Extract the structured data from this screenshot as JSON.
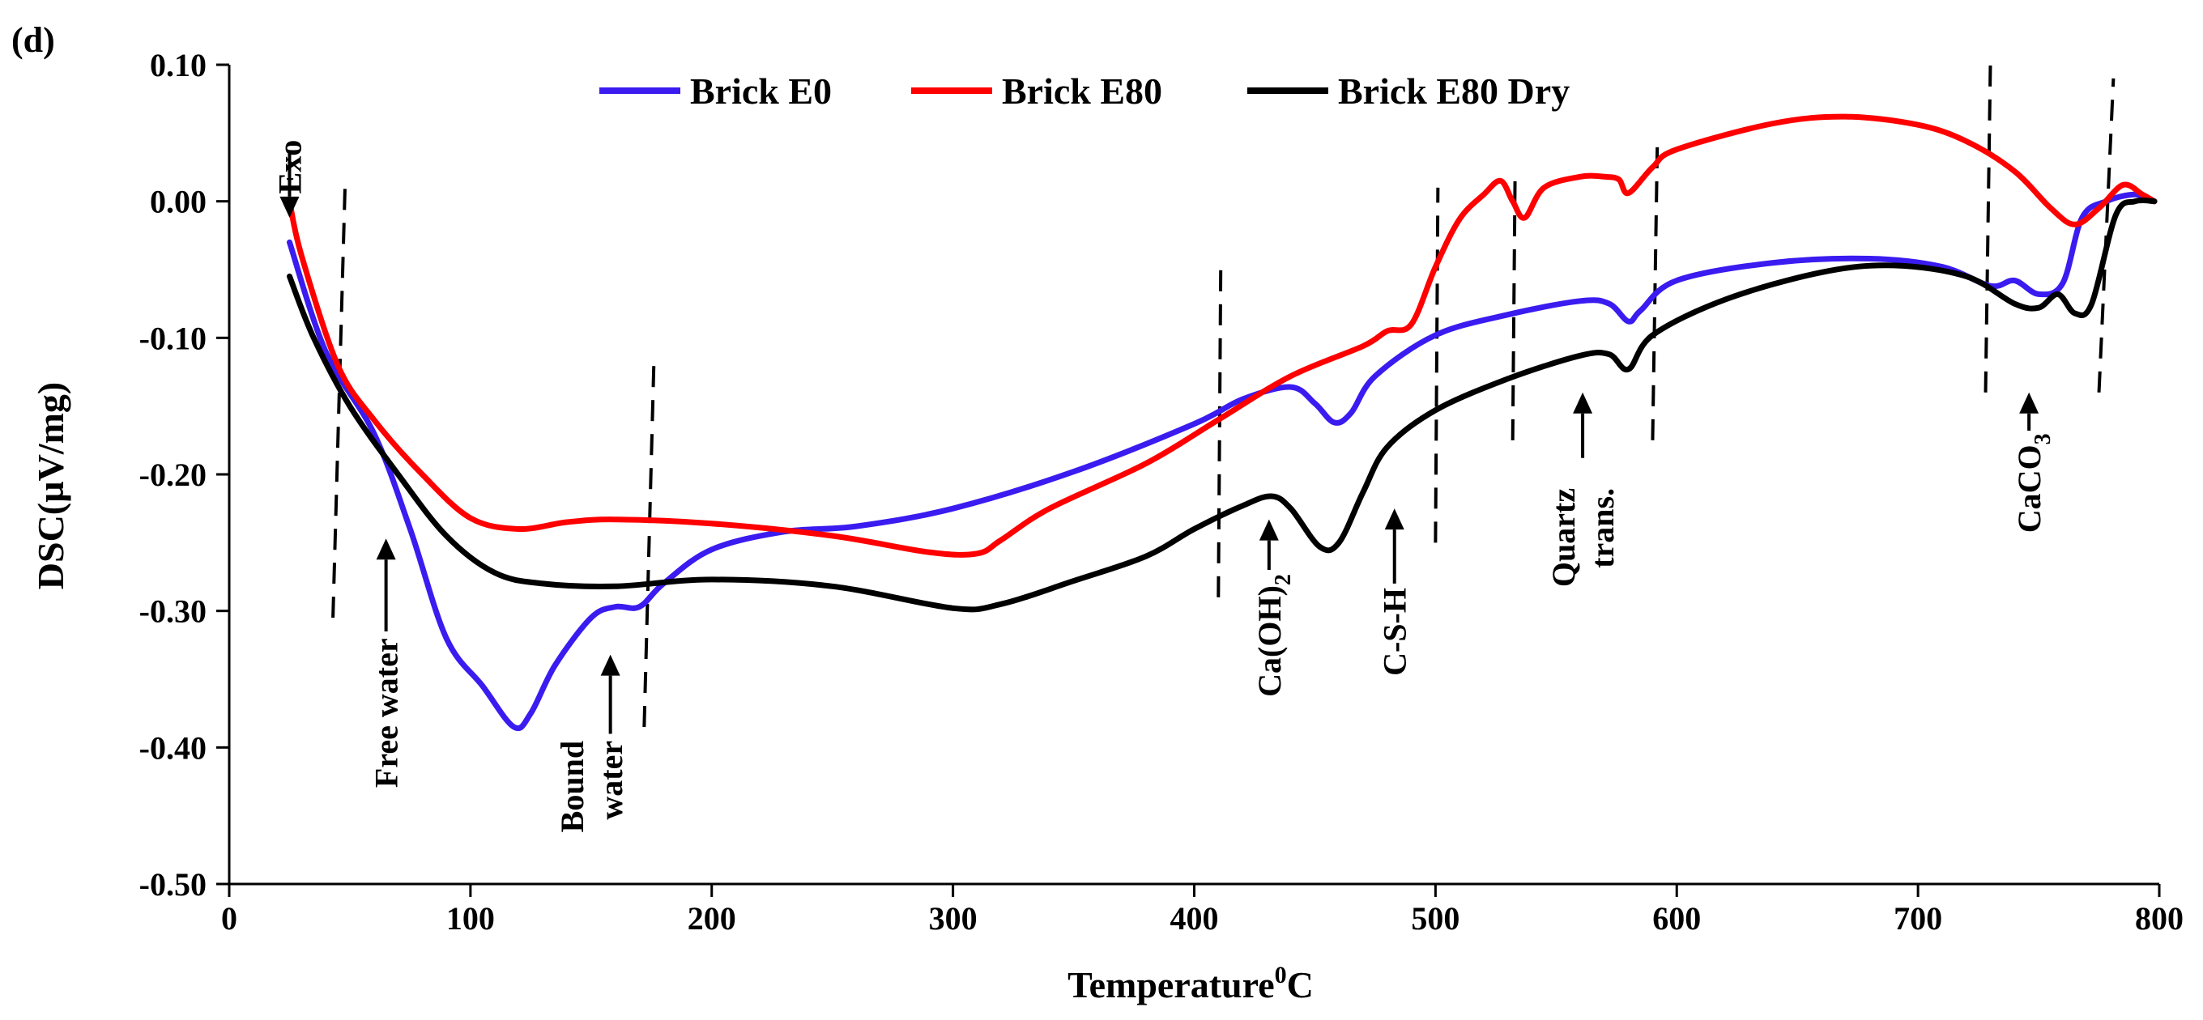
{
  "chart_data": {
    "type": "line",
    "panel_label": "(d)",
    "xlabel": "Temperature",
    "xlabel_sup": "0",
    "xlabel_unit": "C",
    "ylabel": "DSC(µV/mg)",
    "xlim": [
      0,
      800
    ],
    "ylim": [
      -0.5,
      0.1
    ],
    "x_ticks": [
      0,
      100,
      200,
      300,
      400,
      500,
      600,
      700,
      800
    ],
    "x_tick_labels": [
      "0",
      "100",
      "200",
      "300",
      "400",
      "500",
      "600",
      "700",
      "800"
    ],
    "y_ticks": [
      0.1,
      0.0,
      -0.1,
      -0.2,
      -0.3,
      -0.4,
      -0.5
    ],
    "y_tick_labels": [
      "0.10",
      "0.00",
      "-0.10",
      "-0.20",
      "-0.30",
      "-0.40",
      "-0.50"
    ],
    "legend_position": "top-center",
    "series": [
      {
        "name": "Brick E0",
        "color": "#3a1cf0",
        "points": [
          [
            25,
            -0.03
          ],
          [
            40,
            -0.11
          ],
          [
            60,
            -0.17
          ],
          [
            75,
            -0.24
          ],
          [
            90,
            -0.32
          ],
          [
            105,
            -0.355
          ],
          [
            118,
            -0.385
          ],
          [
            125,
            -0.375
          ],
          [
            135,
            -0.34
          ],
          [
            150,
            -0.305
          ],
          [
            160,
            -0.297
          ],
          [
            170,
            -0.297
          ],
          [
            180,
            -0.28
          ],
          [
            200,
            -0.255
          ],
          [
            230,
            -0.242
          ],
          [
            260,
            -0.238
          ],
          [
            300,
            -0.225
          ],
          [
            350,
            -0.198
          ],
          [
            400,
            -0.163
          ],
          [
            420,
            -0.145
          ],
          [
            440,
            -0.136
          ],
          [
            450,
            -0.148
          ],
          [
            458,
            -0.162
          ],
          [
            465,
            -0.155
          ],
          [
            475,
            -0.128
          ],
          [
            500,
            -0.098
          ],
          [
            530,
            -0.083
          ],
          [
            560,
            -0.073
          ],
          [
            572,
            -0.075
          ],
          [
            580,
            -0.088
          ],
          [
            585,
            -0.08
          ],
          [
            600,
            -0.058
          ],
          [
            640,
            -0.045
          ],
          [
            680,
            -0.042
          ],
          [
            710,
            -0.048
          ],
          [
            730,
            -0.062
          ],
          [
            740,
            -0.058
          ],
          [
            750,
            -0.068
          ],
          [
            760,
            -0.06
          ],
          [
            768,
            -0.012
          ],
          [
            778,
            0.0
          ],
          [
            790,
            0.005
          ],
          [
            798,
            0.0
          ]
        ]
      },
      {
        "name": "Brick E80",
        "color": "#ff0000",
        "points": [
          [
            25,
            0.0
          ],
          [
            30,
            -0.04
          ],
          [
            45,
            -0.12
          ],
          [
            60,
            -0.16
          ],
          [
            80,
            -0.2
          ],
          [
            100,
            -0.232
          ],
          [
            120,
            -0.24
          ],
          [
            140,
            -0.235
          ],
          [
            160,
            -0.233
          ],
          [
            200,
            -0.236
          ],
          [
            250,
            -0.245
          ],
          [
            290,
            -0.257
          ],
          [
            310,
            -0.258
          ],
          [
            320,
            -0.248
          ],
          [
            340,
            -0.225
          ],
          [
            380,
            -0.192
          ],
          [
            410,
            -0.16
          ],
          [
            440,
            -0.128
          ],
          [
            470,
            -0.106
          ],
          [
            480,
            -0.095
          ],
          [
            490,
            -0.09
          ],
          [
            500,
            -0.048
          ],
          [
            510,
            -0.013
          ],
          [
            520,
            0.005
          ],
          [
            527,
            0.015
          ],
          [
            532,
            0.0
          ],
          [
            537,
            -0.012
          ],
          [
            545,
            0.01
          ],
          [
            560,
            0.018
          ],
          [
            570,
            0.018
          ],
          [
            576,
            0.016
          ],
          [
            580,
            0.006
          ],
          [
            590,
            0.025
          ],
          [
            600,
            0.038
          ],
          [
            640,
            0.057
          ],
          [
            670,
            0.062
          ],
          [
            700,
            0.056
          ],
          [
            720,
            0.044
          ],
          [
            740,
            0.022
          ],
          [
            755,
            -0.005
          ],
          [
            765,
            -0.017
          ],
          [
            775,
            -0.005
          ],
          [
            785,
            0.012
          ],
          [
            793,
            0.005
          ],
          [
            798,
            0.0
          ]
        ]
      },
      {
        "name": "Brick E80 Dry",
        "color": "#000000",
        "points": [
          [
            25,
            -0.055
          ],
          [
            35,
            -0.1
          ],
          [
            50,
            -0.15
          ],
          [
            70,
            -0.2
          ],
          [
            90,
            -0.245
          ],
          [
            110,
            -0.272
          ],
          [
            130,
            -0.28
          ],
          [
            160,
            -0.282
          ],
          [
            200,
            -0.277
          ],
          [
            250,
            -0.282
          ],
          [
            300,
            -0.298
          ],
          [
            320,
            -0.295
          ],
          [
            350,
            -0.278
          ],
          [
            380,
            -0.26
          ],
          [
            400,
            -0.24
          ],
          [
            420,
            -0.223
          ],
          [
            432,
            -0.216
          ],
          [
            440,
            -0.225
          ],
          [
            452,
            -0.253
          ],
          [
            460,
            -0.25
          ],
          [
            470,
            -0.213
          ],
          [
            480,
            -0.18
          ],
          [
            500,
            -0.153
          ],
          [
            530,
            -0.13
          ],
          [
            560,
            -0.113
          ],
          [
            572,
            -0.112
          ],
          [
            580,
            -0.123
          ],
          [
            590,
            -0.098
          ],
          [
            620,
            -0.072
          ],
          [
            660,
            -0.052
          ],
          [
            690,
            -0.047
          ],
          [
            720,
            -0.055
          ],
          [
            740,
            -0.075
          ],
          [
            750,
            -0.078
          ],
          [
            758,
            -0.068
          ],
          [
            765,
            -0.082
          ],
          [
            772,
            -0.075
          ],
          [
            782,
            -0.01
          ],
          [
            790,
            0.0
          ],
          [
            798,
            0.0
          ]
        ]
      }
    ],
    "dividers": [
      {
        "x1": 43,
        "y1": -0.305,
        "x2": 48,
        "y2": 0.01
      },
      {
        "x1": 172,
        "y1": -0.385,
        "x2": 176,
        "y2": -0.12
      },
      {
        "x1": 410,
        "y1": -0.29,
        "x2": 411,
        "y2": -0.045
      },
      {
        "x1": 500,
        "y1": -0.25,
        "x2": 501,
        "y2": 0.01
      },
      {
        "x1": 532,
        "y1": -0.175,
        "x2": 533,
        "y2": 0.023
      },
      {
        "x1": 590,
        "y1": -0.175,
        "x2": 592,
        "y2": 0.048
      },
      {
        "x1": 728,
        "y1": -0.14,
        "x2": 730,
        "y2": 0.1
      },
      {
        "x1": 775,
        "y1": -0.14,
        "x2": 781,
        "y2": 0.09
      }
    ],
    "annotations": [
      {
        "id": "exo",
        "text": "Exo",
        "arrow_dir": "down",
        "arrow_x": 25,
        "arrow_from": 0.035,
        "arrow_to": -0.012,
        "text_x": 25,
        "text_y": 0.045
      },
      {
        "id": "free-water",
        "text": "Free water",
        "arrow_dir": "up",
        "arrow_x": 65,
        "arrow_from": -0.315,
        "arrow_to": -0.247,
        "text_x": 65,
        "text_y": -0.32
      },
      {
        "id": "bound-water",
        "text": "Bound",
        "text2": "water",
        "arrow_dir": "up",
        "arrow_x": 158,
        "arrow_from": -0.39,
        "arrow_to": -0.332,
        "text_x": 150,
        "text_y": -0.395
      },
      {
        "id": "caoh2",
        "text": "Ca(OH)",
        "sub": "2",
        "arrow_dir": "up",
        "arrow_x": 431,
        "arrow_from": -0.27,
        "arrow_to": -0.233,
        "text_x": 431,
        "text_y": -0.273
      },
      {
        "id": "csh",
        "text": "C-S-H",
        "arrow_dir": "up",
        "arrow_x": 483,
        "arrow_from": -0.28,
        "arrow_to": -0.225,
        "text_x": 483,
        "text_y": -0.283
      },
      {
        "id": "quartz",
        "text": "Quartz",
        "text2": "trans.",
        "arrow_dir": "up",
        "arrow_x": 561,
        "arrow_from": -0.188,
        "arrow_to": -0.14,
        "text_x": 561,
        "text_y": -0.21
      },
      {
        "id": "caco3",
        "text": "CaCO",
        "sub": "3",
        "arrow_dir": "up",
        "arrow_x": 746,
        "arrow_from": -0.168,
        "arrow_to": -0.14,
        "text_x": 746,
        "text_y": -0.17
      }
    ]
  }
}
